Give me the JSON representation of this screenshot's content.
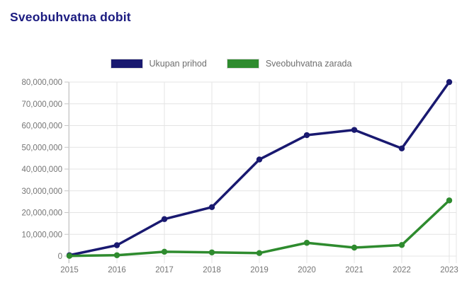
{
  "page": {
    "title": "Sveobuhvatna dobit"
  },
  "colors": {
    "title_text": "#1b1b80",
    "series_navy": "#191970",
    "series_green": "#2e8b2e",
    "grid": "#e4e4e4",
    "axis": "#c6c6c6",
    "tick_text": "#757575",
    "legend_text": "#6e6e6e",
    "background": "#ffffff"
  },
  "chart_data": {
    "type": "line",
    "title": "Sveobuhvatna dobit",
    "categories": [
      "2015",
      "2016",
      "2017",
      "2018",
      "2019",
      "2020",
      "2021",
      "2022",
      "2023"
    ],
    "series": [
      {
        "name": "Ukupan prihod",
        "color": "#191970",
        "values": [
          400000,
          5000000,
          17000000,
          22500000,
          44400000,
          55600000,
          58000000,
          49500000,
          80000000
        ]
      },
      {
        "name": "Sveobuhvatna zarada",
        "color": "#2e8b2e",
        "values": [
          100000,
          400000,
          2000000,
          1700000,
          1400000,
          6100000,
          3900000,
          5100000,
          25600000
        ]
      }
    ],
    "xlabel": "",
    "ylabel": "",
    "ylim": [
      0,
      80000000
    ],
    "ytick_step": 10000000,
    "ytick_labels": [
      "0",
      "10,000,000",
      "20,000,000",
      "30,000,000",
      "40,000,000",
      "50,000,000",
      "60,000,000",
      "70,000,000",
      "80,000,000"
    ],
    "grid": true,
    "legend_position": "top",
    "marker": "circle"
  }
}
